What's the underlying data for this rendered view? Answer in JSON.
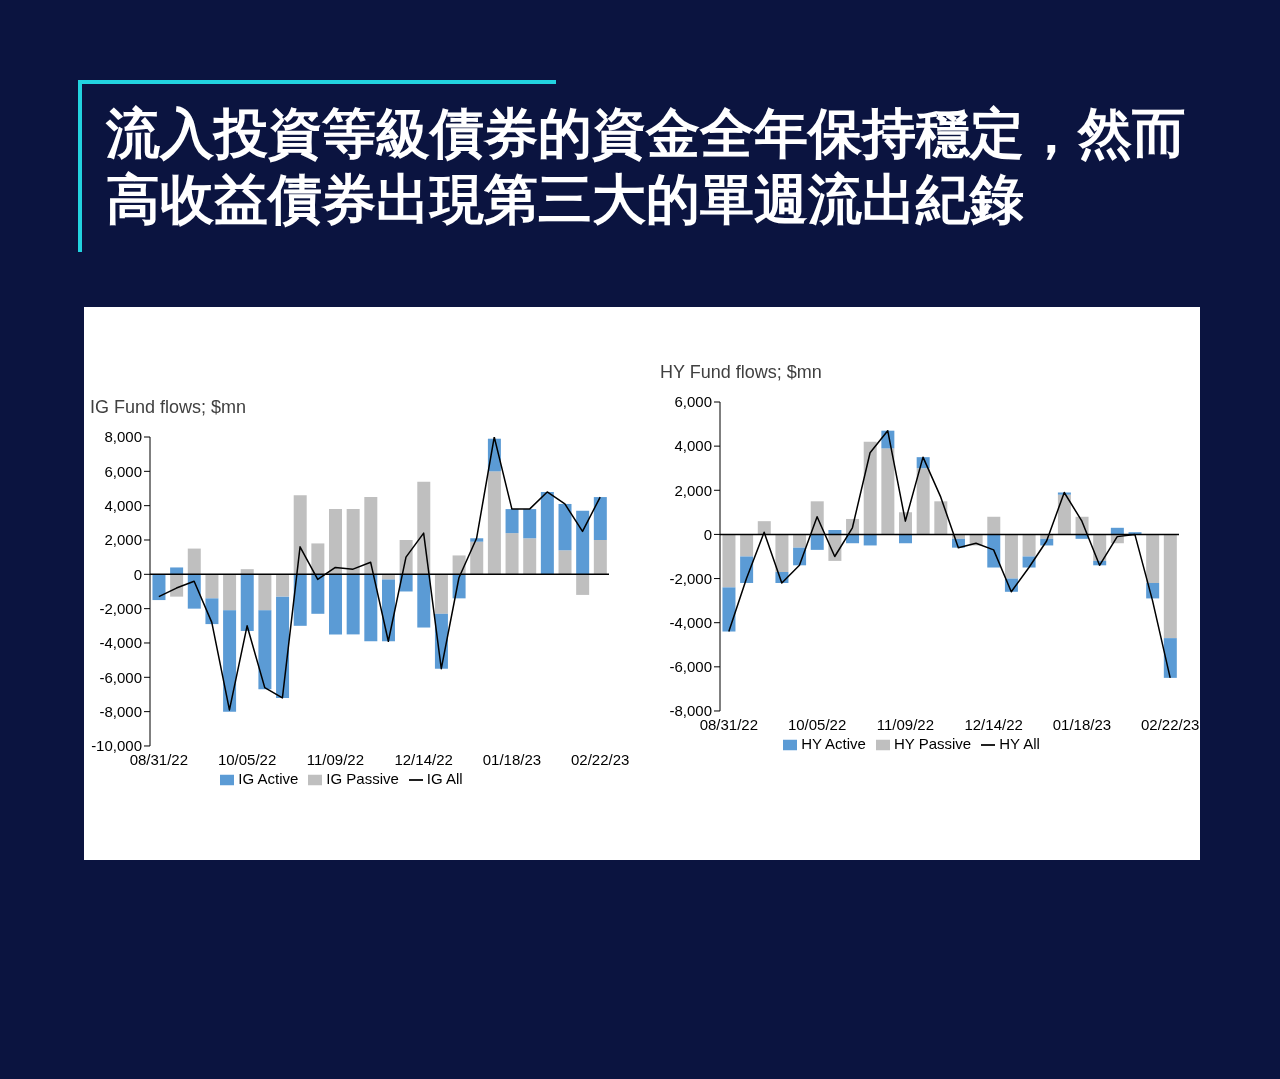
{
  "chart_data": [
    {
      "type": "bar",
      "title": "流入投資等級債券的資金全年保持穩定，然而高收益債券出現第三大的單週流出紀錄",
      "subtitle": "IG Fund flows; $mn",
      "categories": [
        "08/31/22",
        null,
        null,
        null,
        null,
        "10/05/22",
        null,
        null,
        null,
        null,
        "11/09/22",
        null,
        null,
        null,
        null,
        "12/14/22",
        null,
        null,
        null,
        null,
        "01/18/23",
        null,
        null,
        null,
        null,
        "02/22/23"
      ],
      "series": [
        {
          "name": "IG Passive",
          "color": "#bfbfbf",
          "values": [
            0,
            -1300,
            1500,
            -1400,
            -2100,
            300,
            -2100,
            -1300,
            4600,
            1800,
            3800,
            3800,
            4500,
            -300,
            2000,
            5400,
            -2300,
            1100,
            1900,
            6000,
            2400,
            2100,
            0,
            1400,
            -1200,
            2000
          ]
        },
        {
          "name": "IG Active",
          "color": "#5b9bd5",
          "values": [
            -1500,
            400,
            -2000,
            -1500,
            -5900,
            -3300,
            -4600,
            -5900,
            -3000,
            -2300,
            -3500,
            -3500,
            -3900,
            -3600,
            -1000,
            -3100,
            -3200,
            -1400,
            200,
            1900,
            1400,
            1700,
            4800,
            2700,
            3700,
            2500
          ]
        },
        {
          "name": "IG All",
          "type": "line",
          "color": "#000000",
          "values": [
            -1300,
            -800,
            -400,
            -2800,
            -7900,
            -3000,
            -6600,
            -7200,
            1600,
            -300,
            400,
            300,
            700,
            -3900,
            1000,
            2400,
            -5500,
            -200,
            2100,
            8000,
            3800,
            3800,
            4800,
            4100,
            2500,
            4500
          ]
        }
      ],
      "stacked": true,
      "ylim": [
        -10000,
        8000
      ],
      "yticks": [
        {
          "value": -10000,
          "label": "-10,000"
        },
        {
          "value": -8000,
          "label": "-8,000"
        },
        {
          "value": -6000,
          "label": "-6,000"
        },
        {
          "value": -4000,
          "label": "-4,000"
        },
        {
          "value": -2000,
          "label": "-2,000"
        },
        0,
        {
          "value": 2000,
          "label": "2,000"
        },
        {
          "value": 4000,
          "label": "4,000"
        },
        {
          "value": 6000,
          "label": "6,000"
        },
        {
          "value": 8000,
          "label": "8,000"
        }
      ],
      "legend": "bottom",
      "marker": "none"
    },
    {
      "type": "bar",
      "title": "HY Fund flows; $mn",
      "categories": [
        "08/31/22",
        null,
        null,
        null,
        null,
        "10/05/22",
        null,
        null,
        null,
        null,
        "11/09/22",
        null,
        null,
        null,
        null,
        "12/14/22",
        null,
        null,
        null,
        null,
        "01/18/23",
        null,
        null,
        null,
        null,
        "02/22/23"
      ],
      "series": [
        {
          "name": "HY Passive",
          "color": "#bfbfbf",
          "values": [
            -2400,
            -1000,
            600,
            -1700,
            -600,
            1500,
            -1200,
            700,
            4200,
            3900,
            1000,
            3000,
            1500,
            -200,
            -500,
            800,
            -2000,
            -1000,
            -200,
            1800,
            800,
            -1200,
            -400,
            0,
            -2200,
            -4700
          ]
        },
        {
          "name": "HY Active",
          "color": "#5b9bd5",
          "values": [
            -2000,
            -1200,
            0,
            -500,
            -800,
            -700,
            200,
            -400,
            -500,
            800,
            -400,
            500,
            0,
            -400,
            0,
            -1500,
            -600,
            -500,
            -300,
            100,
            -200,
            -200,
            300,
            100,
            -700,
            -1800
          ]
        },
        {
          "name": "HY All",
          "type": "line",
          "color": "#000000",
          "values": [
            -4400,
            -2000,
            100,
            -2200,
            -1400,
            800,
            -1000,
            300,
            3700,
            4700,
            600,
            3500,
            1700,
            -600,
            -400,
            -700,
            -2600,
            -1500,
            -300,
            1900,
            600,
            -1400,
            -100,
            0,
            -3000,
            -6500
          ]
        }
      ],
      "stacked": true,
      "ylim": [
        -8000,
        6000
      ],
      "yticks": [
        {
          "value": -8000,
          "label": "-8,000"
        },
        {
          "value": -6000,
          "label": "-6,000"
        },
        {
          "value": -4000,
          "label": "-4,000"
        },
        {
          "value": -2000,
          "label": "-2,000"
        },
        0,
        {
          "value": 2000,
          "label": "2,000"
        },
        {
          "value": 4000,
          "label": "4,000"
        },
        {
          "value": 6000,
          "label": "6,000"
        }
      ],
      "legend": "bottom",
      "marker": "none"
    }
  ]
}
